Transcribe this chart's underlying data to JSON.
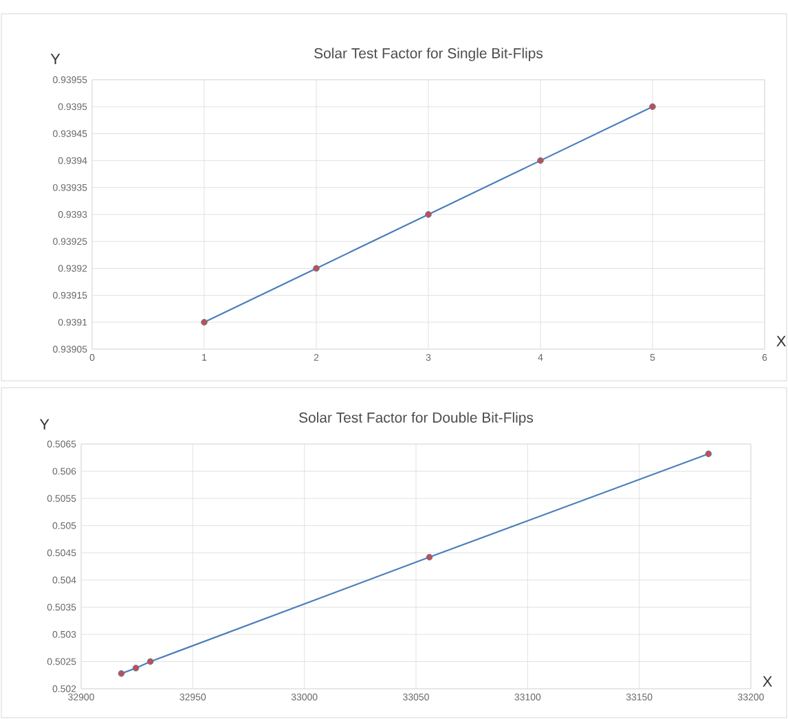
{
  "chart_data": [
    {
      "type": "line",
      "title": "Solar Test Factor for Single Bit-Flips",
      "xlabel": "X",
      "ylabel": "Y",
      "x": [
        1,
        2,
        3,
        4,
        5
      ],
      "series": [
        {
          "color": "#4a7ebb",
          "values": [
            0.9391,
            0.9392,
            0.9393,
            0.9394,
            0.9395
          ]
        }
      ],
      "marker": "circle",
      "grid": true,
      "xlim": [
        0,
        6
      ],
      "xticks": [
        0,
        1,
        2,
        3,
        4,
        5,
        6
      ],
      "ylim": [
        0.93905,
        0.93955
      ],
      "yticks": [
        0.93905,
        0.9391,
        0.93915,
        0.9392,
        0.93925,
        0.9393,
        0.93935,
        0.9394,
        0.93945,
        0.9395,
        0.93955
      ]
    },
    {
      "type": "line",
      "title": "Solar Test Factor for Double Bit-Flips",
      "xlabel": "X",
      "ylabel": "Y",
      "x": [
        32918,
        32924.5,
        32931,
        33056,
        33181
      ],
      "series": [
        {
          "color": "#4a7ebb",
          "values": [
            0.50228,
            0.50238,
            0.5025,
            0.50442,
            0.50632
          ]
        }
      ],
      "marker": "circle",
      "grid": true,
      "xlim": [
        32900,
        33200
      ],
      "xticks": [
        32900,
        32950,
        33000,
        33050,
        33100,
        33150,
        33200
      ],
      "ylim": [
        0.502,
        0.5065
      ],
      "yticks": [
        0.502,
        0.5025,
        0.503,
        0.5035,
        0.504,
        0.5045,
        0.505,
        0.5055,
        0.506,
        0.5065
      ]
    }
  ]
}
